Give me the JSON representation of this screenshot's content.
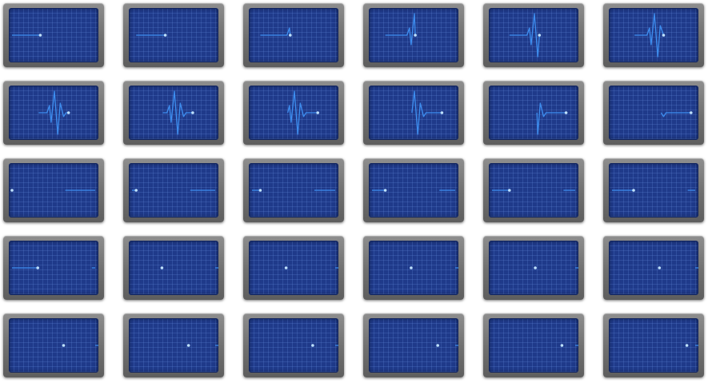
{
  "colors": {
    "background": "#ffffff",
    "frame": "#7a7a7a",
    "screen": "#1f3a8a",
    "grid": "#4f6fc4",
    "trace": "#3d8ef0",
    "dot": "#bfe2ff"
  },
  "icon_name": "heartbeat-monitor-icon",
  "sprite": {
    "rows": 5,
    "cols": 6
  },
  "frames": [
    {
      "start": 0.0,
      "end": 0.34
    },
    {
      "start": 0.05,
      "end": 0.4
    },
    {
      "start": 0.1,
      "end": 0.46
    },
    {
      "start": 0.16,
      "end": 0.52
    },
    {
      "start": 0.21,
      "end": 0.57
    },
    {
      "start": 0.27,
      "end": 0.62
    },
    {
      "start": 0.32,
      "end": 0.68
    },
    {
      "start": 0.37,
      "end": 0.73
    },
    {
      "start": 0.43,
      "end": 0.79
    },
    {
      "start": 0.48,
      "end": 0.84
    },
    {
      "start": 0.54,
      "end": 0.89
    },
    {
      "start": 0.59,
      "end": 0.95
    },
    {
      "start": 0.64,
      "end": 1.0
    },
    {
      "start": 0.7,
      "end": 1.05
    },
    {
      "start": 0.75,
      "end": 1.1
    },
    {
      "start": 0.81,
      "end": 1.16
    },
    {
      "start": 0.86,
      "end": 1.21
    },
    {
      "start": 0.91,
      "end": 1.26
    },
    {
      "start": 0.96,
      "end": 1.31
    },
    {
      "start": 1.0,
      "end": 1.36
    },
    {
      "start": 1.0,
      "end": 1.41
    },
    {
      "start": 1.0,
      "end": 1.47
    },
    {
      "start": 1.0,
      "end": 1.52
    },
    {
      "start": 1.0,
      "end": 1.57
    },
    {
      "start": 1.0,
      "end": 1.62
    },
    {
      "start": 1.0,
      "end": 1.68
    },
    {
      "start": 1.0,
      "end": 1.73
    },
    {
      "start": 1.0,
      "end": 1.79
    },
    {
      "start": 1.0,
      "end": 1.84
    },
    {
      "start": 1.0,
      "end": 1.9
    }
  ]
}
